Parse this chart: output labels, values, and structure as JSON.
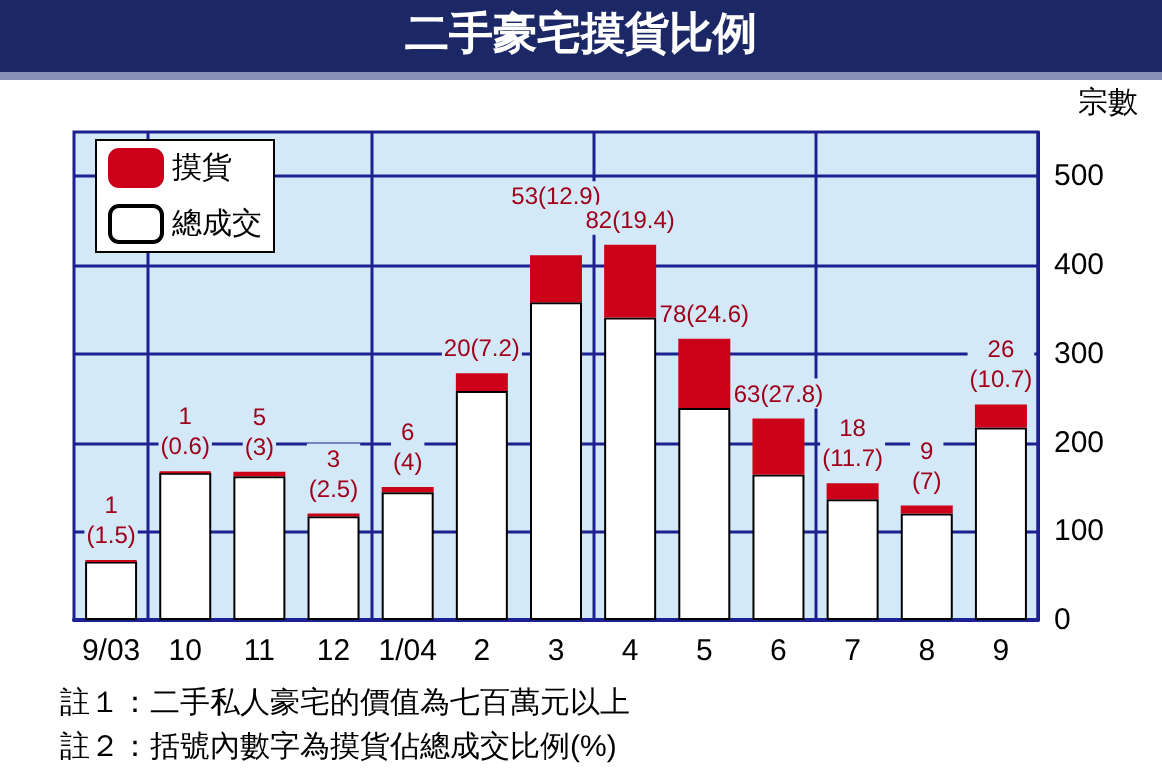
{
  "chart_data": {
    "type": "bar",
    "title": "二手豪宅摸貨比例",
    "ylabel": "宗數",
    "stacked": true,
    "categories": [
      "9/03",
      "10",
      "11",
      "12",
      "1/04",
      "2",
      "3",
      "4",
      "5",
      "6",
      "7",
      "8",
      "9"
    ],
    "series": [
      {
        "name": "總成交",
        "color": "#ffffff",
        "values": [
          66,
          166,
          162,
          117,
          144,
          258,
          358,
          341,
          239,
          164,
          136,
          120,
          217
        ]
      },
      {
        "name": "摸貨",
        "color": "#cc0018",
        "values": [
          1,
          1,
          5,
          3,
          6,
          20,
          53,
          82,
          78,
          63,
          18,
          9,
          26
        ],
        "value_labels": [
          "1\n(1.5)",
          "1\n(0.6)",
          "5\n(3)",
          "3\n(2.5)",
          "6\n(4)",
          "20(7.2)",
          "53(12.9)",
          "82(19.4)",
          "78(24.6)",
          "63(27.8)",
          "18\n(11.7)",
          "9\n(7)",
          "26\n(10.7)"
        ]
      }
    ],
    "ylim": [
      0,
      550
    ],
    "yticks": [
      0,
      100,
      200,
      300,
      400,
      500
    ],
    "grid": true,
    "legend": "top left",
    "annotations": [
      "註１：二手私人豪宅的價值為七百萬元以上",
      "註２：括號內數字為摸貨佔總成交比例(%)"
    ]
  }
}
